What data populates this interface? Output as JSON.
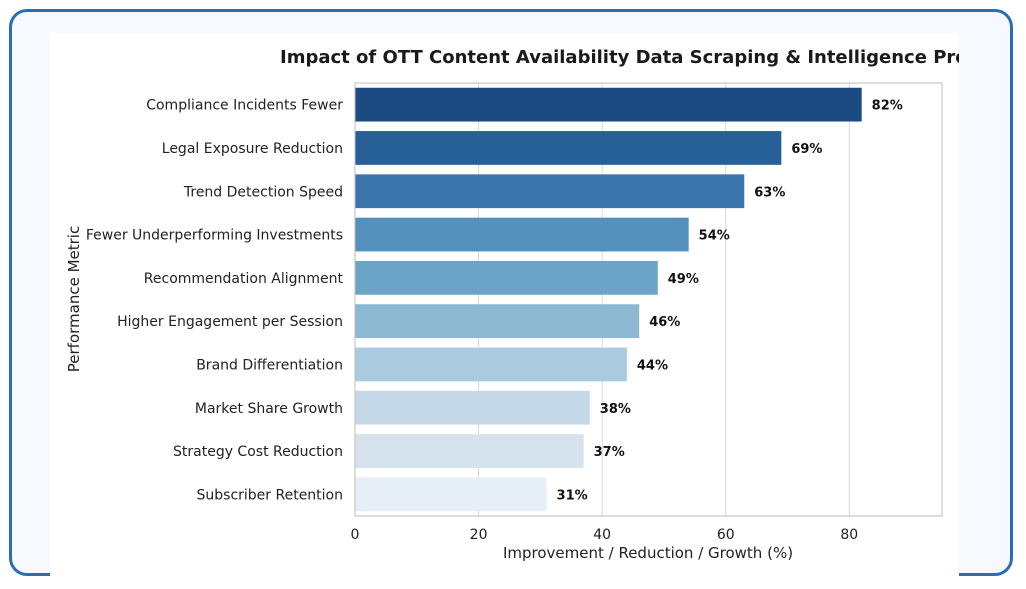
{
  "chart_data": {
    "type": "bar",
    "orientation": "horizontal",
    "title": "Impact of OTT Content Availability Data Scraping & Intelligence Prog",
    "xlabel": "Improvement / Reduction / Growth (%)",
    "ylabel": "Performance Metric",
    "xlim": [
      0,
      95
    ],
    "xticks": [
      "0",
      "20",
      "40",
      "60",
      "80"
    ],
    "grid": true,
    "categories": [
      "Compliance Incidents Fewer",
      "Legal Exposure Reduction",
      "Trend Detection Speed",
      "Fewer Underperforming Investments",
      "Recommendation Alignment",
      "Higher Engagement per Session",
      "Brand Differentiation",
      "Market Share Growth",
      "Strategy Cost Reduction",
      "Subscriber Retention"
    ],
    "values": [
      82,
      69,
      63,
      54,
      49,
      46,
      44,
      38,
      37,
      31
    ],
    "value_labels": [
      "82%",
      "69%",
      "63%",
      "54%",
      "49%",
      "46%",
      "44%",
      "38%",
      "37%",
      "31%"
    ],
    "colors": [
      "#1c4a82",
      "#275f98",
      "#3a76ab",
      "#5390bb",
      "#6ba4c7",
      "#8cb8d2",
      "#a9cadf",
      "#c5d8e7",
      "#d6e3ef",
      "#e6eef7"
    ]
  }
}
